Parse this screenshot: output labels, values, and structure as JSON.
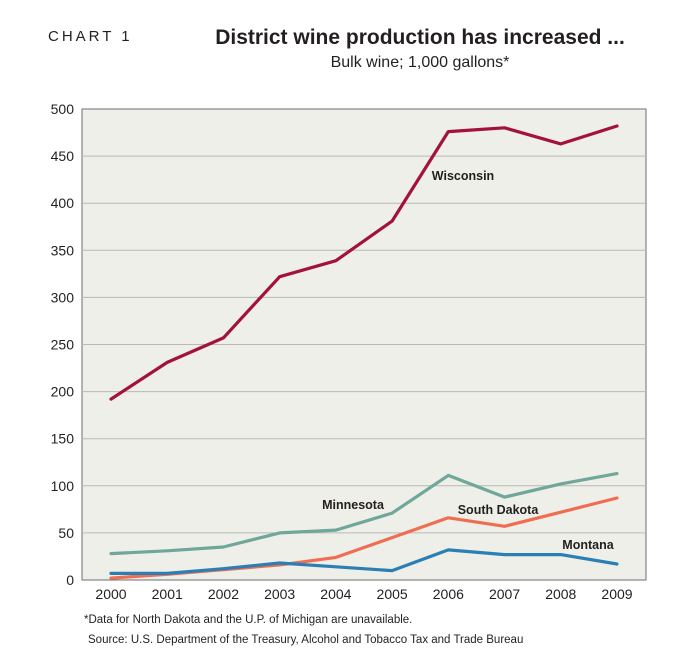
{
  "header": {
    "chart_label": "CHART 1",
    "title": "District wine production has increased ...",
    "subtitle": "Bulk wine; 1,000 gallons*"
  },
  "footer": {
    "footnote": "*Data for North Dakota and the U.P. of Michigan are unavailable.",
    "source": "Source: U.S. Department of the Treasury, Alcohol and Tobacco Tax and Trade Bureau"
  },
  "chart_data": {
    "type": "line",
    "title": "District wine production has increased ...",
    "subtitle": "Bulk wine; 1,000 gallons*",
    "xlabel": "",
    "ylabel": "",
    "x": [
      "2000",
      "2001",
      "2002",
      "2003",
      "2004",
      "2005",
      "2006",
      "2007",
      "2008",
      "2009"
    ],
    "ylim": [
      0,
      500
    ],
    "yticks": [
      0,
      50,
      100,
      150,
      200,
      250,
      300,
      350,
      400,
      450,
      500
    ],
    "grid": true,
    "background": "#eeefe8",
    "series": [
      {
        "name": "Wisconsin",
        "color": "#a3113f",
        "values": [
          192,
          231,
          257,
          322,
          339,
          381,
          476,
          480,
          463,
          482
        ]
      },
      {
        "name": "Minnesota",
        "color": "#6fa79b",
        "values": [
          28,
          31,
          35,
          50,
          53,
          71,
          111,
          88,
          102,
          113
        ]
      },
      {
        "name": "South Dakota",
        "color": "#ef6e52",
        "values": [
          2,
          6,
          11,
          16,
          24,
          45,
          66,
          57,
          72,
          87
        ]
      },
      {
        "name": "Montana",
        "color": "#2c7fb4",
        "values": [
          7,
          7,
          12,
          18,
          14,
          10,
          32,
          27,
          27,
          17
        ]
      }
    ]
  }
}
